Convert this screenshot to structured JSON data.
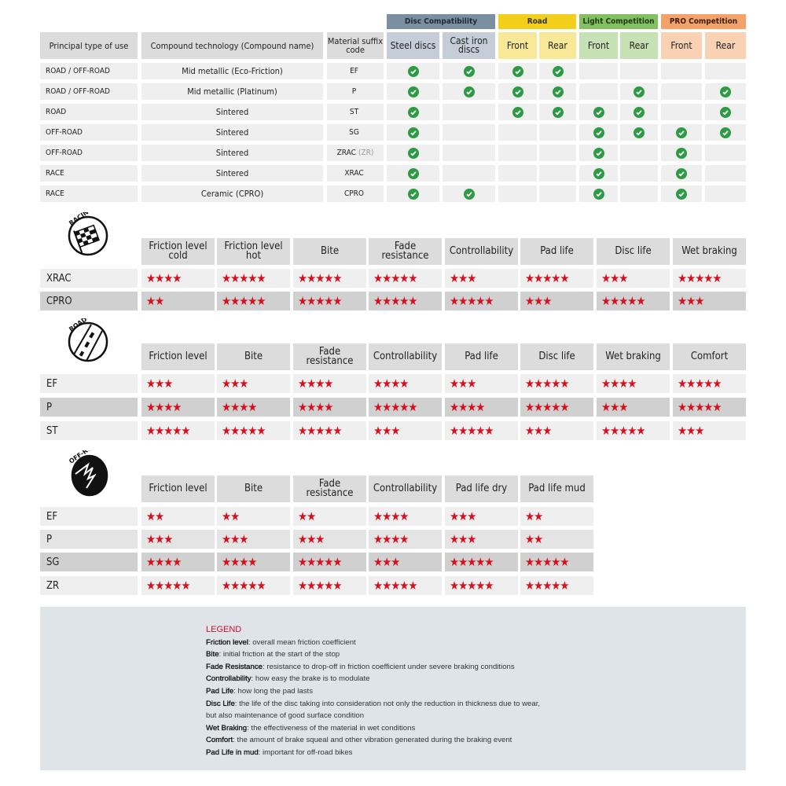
{
  "compat": {
    "groups": [
      {
        "label": "Disc Compatibility",
        "color": "#7c8fa1",
        "text": "#1e2a36",
        "sub": [
          "Steel discs",
          "Cast iron discs"
        ],
        "subcolor": "#c5ced8"
      },
      {
        "label": "Road",
        "color": "#f2cf1a",
        "text": "#333",
        "sub": [
          "Front",
          "Rear"
        ],
        "subcolor": "#f8e897"
      },
      {
        "label": "Light Competition",
        "color": "#83c061",
        "text": "#1f3a12",
        "sub": [
          "Front",
          "Rear"
        ],
        "subcolor": "#c6e1b4"
      },
      {
        "label": "PRO Competition",
        "color": "#f3a36a",
        "text": "#3a1d0a",
        "sub": [
          "Front",
          "Rear"
        ],
        "subcolor": "#f9d2b4"
      }
    ],
    "headers": [
      "Principal type of use",
      "Compound technology (Compound name)",
      "Material suffix code"
    ],
    "check_color": "#2e9a45",
    "rows": [
      {
        "use": "ROAD / OFF-ROAD",
        "compound": "Mid metallic (Eco-Friction)",
        "code": "EF",
        "code_suffix": "",
        "checks": [
          1,
          1,
          1,
          1,
          0,
          0,
          0,
          0
        ]
      },
      {
        "use": "ROAD / OFF-ROAD",
        "compound": "Mid metallic (Platinum)",
        "code": "P",
        "code_suffix": "",
        "checks": [
          1,
          1,
          1,
          1,
          0,
          1,
          0,
          1
        ]
      },
      {
        "use": "ROAD",
        "compound": "Sintered",
        "code": "ST",
        "code_suffix": "",
        "checks": [
          1,
          0,
          1,
          1,
          1,
          1,
          0,
          1
        ]
      },
      {
        "use": "OFF-ROAD",
        "compound": "Sintered",
        "code": "SG",
        "code_suffix": "",
        "checks": [
          1,
          0,
          0,
          0,
          1,
          1,
          1,
          1
        ]
      },
      {
        "use": "OFF-ROAD",
        "compound": "Sintered",
        "code": "ZRAC",
        "code_suffix": "(ZR)",
        "checks": [
          1,
          0,
          0,
          0,
          1,
          0,
          1,
          0
        ]
      },
      {
        "use": "RACE",
        "compound": "Sintered",
        "code": "XRAC",
        "code_suffix": "",
        "checks": [
          1,
          0,
          0,
          0,
          1,
          0,
          1,
          0
        ]
      },
      {
        "use": "RACE",
        "compound": "Ceramic (CPRO)",
        "code": "CPRO",
        "code_suffix": "",
        "checks": [
          1,
          1,
          0,
          0,
          1,
          0,
          1,
          0
        ]
      }
    ]
  },
  "star_color": "#d6101e",
  "sections": [
    {
      "icon": "racing-flag-icon",
      "icon_label": "RACING",
      "columns": [
        "Friction level cold",
        "Friction level hot",
        "Bite",
        "Fade resistance",
        "Controllability",
        "Pad life",
        "Disc life",
        "Wet braking"
      ],
      "rows": [
        {
          "name": "XRAC",
          "shade": "light",
          "ratings": [
            4,
            5,
            5,
            5,
            3,
            5,
            3,
            5
          ]
        },
        {
          "name": "CPRO",
          "shade": "dark",
          "ratings": [
            2,
            5,
            5,
            5,
            5,
            3,
            5,
            3
          ]
        }
      ]
    },
    {
      "icon": "road-icon",
      "icon_label": "ROAD",
      "columns": [
        "Friction level",
        "Bite",
        "Fade resistance",
        "Controllability",
        "Pad life",
        "Disc life",
        "Wet braking",
        "Comfort"
      ],
      "rows": [
        {
          "name": "EF",
          "shade": "light",
          "ratings": [
            3,
            3,
            4,
            4,
            3,
            5,
            4,
            5
          ]
        },
        {
          "name": "P",
          "shade": "dark",
          "ratings": [
            4,
            4,
            4,
            5,
            4,
            5,
            3,
            5
          ]
        },
        {
          "name": "ST",
          "shade": "light",
          "ratings": [
            5,
            5,
            5,
            3,
            5,
            3,
            5,
            3
          ]
        }
      ]
    },
    {
      "icon": "off-road-icon",
      "icon_label": "OFF-ROAD",
      "columns": [
        "Friction level",
        "Bite",
        "Fade resistance",
        "Controllability",
        "Pad life dry",
        "Pad life mud"
      ],
      "rows": [
        {
          "name": "EF",
          "shade": "light",
          "ratings": [
            2,
            2,
            2,
            4,
            3,
            2
          ]
        },
        {
          "name": "P",
          "shade": "mid",
          "ratings": [
            3,
            3,
            3,
            4,
            3,
            2
          ]
        },
        {
          "name": "SG",
          "shade": "dark",
          "ratings": [
            4,
            4,
            5,
            3,
            5,
            5
          ]
        },
        {
          "name": "ZR",
          "shade": "light",
          "ratings": [
            5,
            5,
            5,
            5,
            5,
            5
          ]
        }
      ]
    }
  ],
  "legend": {
    "title": "LEGEND",
    "items": [
      {
        "term": "Friction level",
        "desc": ": overall mean friction coefficient"
      },
      {
        "term": "Bite",
        "desc": ": initial friction at the start of the stop"
      },
      {
        "term": "Fade Resistance",
        "desc": ": resistance to drop-off in friction coefficient under severe braking conditions"
      },
      {
        "term": "Controllability",
        "desc": ": how easy the brake is to modulate"
      },
      {
        "term": "Pad Life",
        "desc": ": how long the pad lasts"
      },
      {
        "term": "Disc Life",
        "desc": ": the life of the disc taking into consideration not only the reduction in thickness due to wear,"
      },
      {
        "term": "",
        "desc": "but also maintenance of good surface condition"
      },
      {
        "term": "Wet Braking",
        "desc": ": the effectiveness of the material in wet conditions"
      },
      {
        "term": "Comfort",
        "desc": ": the amount of brake squeal and other vibration generated during the braking event"
      },
      {
        "term": "Pad Life in mud",
        "desc": ": important for off-road bikes"
      }
    ]
  }
}
